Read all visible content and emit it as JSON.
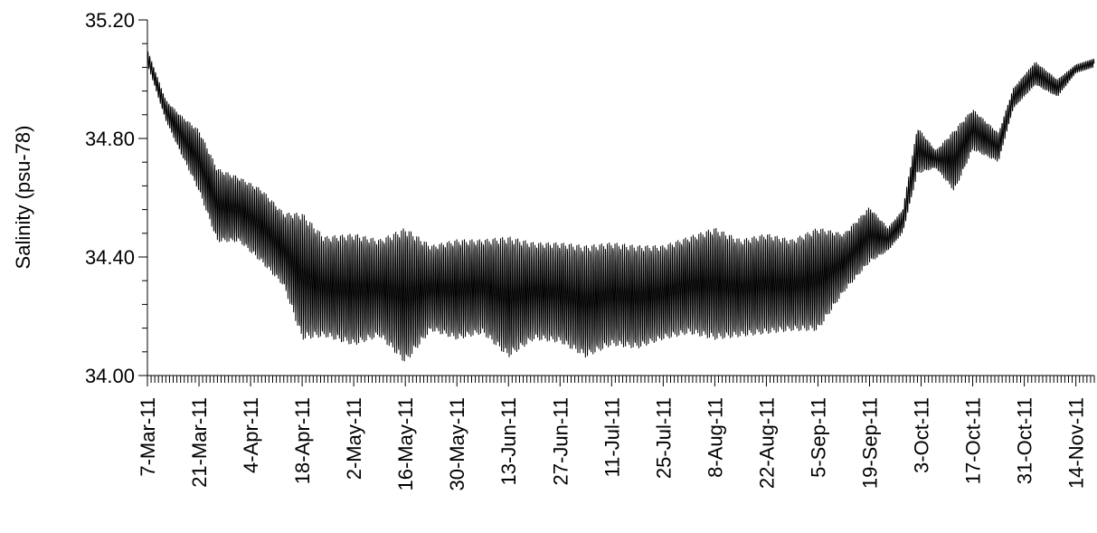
{
  "chart_data": {
    "type": "line",
    "title": "",
    "xlabel": "",
    "ylabel": "Salinity (psu-78)",
    "x_start": "2011-03-07",
    "x_end": "2011-11-19",
    "ylim": [
      34.0,
      35.2
    ],
    "y_ticks": [
      "34.00",
      "34.40",
      "34.80",
      "35.20"
    ],
    "x_tick_labels": [
      "7-Mar-11",
      "21-Mar-11",
      "4-Apr-11",
      "18-Apr-11",
      "2-May-11",
      "16-May-11",
      "30-May-11",
      "13-Jun-11",
      "27-Jun-11",
      "11-Jul-11",
      "25-Jul-11",
      "8-Aug-11",
      "22-Aug-11",
      "5-Sep-11",
      "19-Sep-11",
      "3-Oct-11",
      "17-Oct-11",
      "31-Oct-11",
      "14-Nov-11"
    ],
    "grid": false,
    "series": [
      {
        "color": "#000000",
        "envelope": {
          "date": [
            "2011-03-07",
            "2011-03-12",
            "2011-03-16",
            "2011-03-21",
            "2011-03-26",
            "2011-04-01",
            "2011-04-07",
            "2011-04-13",
            "2011-04-18",
            "2011-04-24",
            "2011-05-02",
            "2011-05-09",
            "2011-05-16",
            "2011-05-23",
            "2011-05-30",
            "2011-06-06",
            "2011-06-13",
            "2011-06-20",
            "2011-06-27",
            "2011-07-04",
            "2011-07-11",
            "2011-07-18",
            "2011-07-25",
            "2011-08-01",
            "2011-08-08",
            "2011-08-15",
            "2011-08-22",
            "2011-08-29",
            "2011-09-05",
            "2011-09-12",
            "2011-09-19",
            "2011-09-24",
            "2011-09-28",
            "2011-10-02",
            "2011-10-07",
            "2011-10-12",
            "2011-10-17",
            "2011-10-24",
            "2011-10-28",
            "2011-11-03",
            "2011-11-09",
            "2011-11-14",
            "2011-11-19"
          ],
          "max": [
            35.1,
            34.93,
            34.88,
            34.83,
            34.7,
            34.67,
            34.63,
            34.55,
            34.55,
            34.47,
            34.48,
            34.46,
            34.5,
            34.44,
            34.46,
            34.46,
            34.47,
            34.45,
            34.45,
            34.44,
            34.45,
            34.44,
            34.44,
            34.47,
            34.5,
            34.46,
            34.48,
            34.46,
            34.5,
            34.48,
            34.57,
            34.5,
            34.56,
            34.84,
            34.76,
            34.83,
            34.9,
            34.82,
            34.97,
            35.06,
            35.0,
            35.05,
            35.07
          ],
          "min": [
            35.05,
            34.86,
            34.75,
            34.62,
            34.45,
            34.45,
            34.38,
            34.3,
            34.12,
            34.13,
            34.1,
            34.13,
            34.04,
            34.15,
            34.12,
            34.14,
            34.06,
            34.12,
            34.11,
            34.06,
            34.1,
            34.09,
            34.12,
            34.14,
            34.12,
            34.13,
            34.14,
            34.15,
            34.15,
            34.28,
            34.38,
            34.42,
            34.48,
            34.68,
            34.7,
            34.62,
            34.76,
            34.72,
            34.9,
            34.98,
            34.94,
            35.02,
            35.04
          ]
        }
      }
    ]
  }
}
